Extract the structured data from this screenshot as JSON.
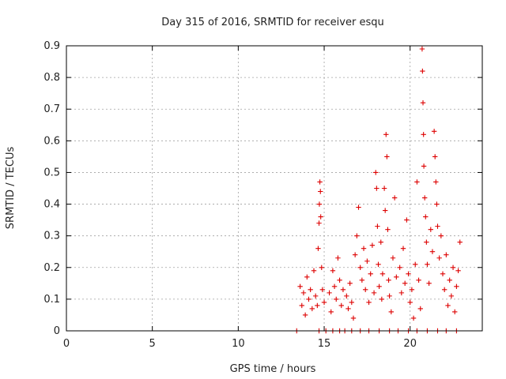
{
  "chart_data": {
    "type": "scatter",
    "title": "Day 315 of 2016, SRMTID for receiver esqu",
    "xlabel": "GPS time / hours",
    "ylabel": "SRMTID / TECUs",
    "xlim": [
      0,
      24.2
    ],
    "ylim": [
      0,
      0.9
    ],
    "xticks": [
      0,
      5,
      10,
      15,
      20
    ],
    "xtick_labels": [
      "0",
      "5",
      "10",
      "15",
      "20"
    ],
    "yticks": [
      0,
      0.1,
      0.2,
      0.3,
      0.4,
      0.5,
      0.6,
      0.7,
      0.8,
      0.9
    ],
    "ytick_labels": [
      "0",
      "0.1",
      "0.2",
      "0.3",
      "0.4",
      "0.5",
      "0.6",
      "0.7",
      "0.8",
      "0.9"
    ],
    "grid": true,
    "marker": "+",
    "series": [
      {
        "name": "SRMTID",
        "color": "#dd0000",
        "points": [
          [
            13.4,
            0.0
          ],
          [
            14.7,
            0.0
          ],
          [
            15.1,
            0.0
          ],
          [
            15.5,
            0.0
          ],
          [
            15.9,
            0.0
          ],
          [
            16.2,
            0.0
          ],
          [
            16.6,
            0.0
          ],
          [
            17.1,
            0.0
          ],
          [
            17.6,
            0.0
          ],
          [
            18.2,
            0.0
          ],
          [
            18.8,
            0.0
          ],
          [
            19.3,
            0.0
          ],
          [
            19.9,
            0.0
          ],
          [
            20.4,
            0.0
          ],
          [
            21.0,
            0.0
          ],
          [
            21.6,
            0.0
          ],
          [
            22.1,
            0.0
          ],
          [
            22.7,
            0.0
          ],
          [
            13.6,
            0.14
          ],
          [
            13.7,
            0.08
          ],
          [
            13.8,
            0.12
          ],
          [
            13.9,
            0.05
          ],
          [
            14.0,
            0.17
          ],
          [
            14.1,
            0.1
          ],
          [
            14.2,
            0.13
          ],
          [
            14.3,
            0.07
          ],
          [
            14.4,
            0.19
          ],
          [
            14.5,
            0.11
          ],
          [
            14.6,
            0.08
          ],
          [
            14.65,
            0.26
          ],
          [
            14.7,
            0.34
          ],
          [
            14.72,
            0.4
          ],
          [
            14.75,
            0.47
          ],
          [
            14.78,
            0.44
          ],
          [
            14.8,
            0.36
          ],
          [
            14.85,
            0.2
          ],
          [
            14.9,
            0.13
          ],
          [
            15.0,
            0.09
          ],
          [
            15.3,
            0.12
          ],
          [
            15.4,
            0.06
          ],
          [
            15.5,
            0.19
          ],
          [
            15.6,
            0.14
          ],
          [
            15.7,
            0.1
          ],
          [
            15.8,
            0.23
          ],
          [
            15.9,
            0.16
          ],
          [
            16.0,
            0.08
          ],
          [
            16.1,
            0.13
          ],
          [
            16.3,
            0.11
          ],
          [
            16.4,
            0.07
          ],
          [
            16.5,
            0.15
          ],
          [
            16.6,
            0.09
          ],
          [
            16.7,
            0.04
          ],
          [
            16.8,
            0.24
          ],
          [
            16.9,
            0.3
          ],
          [
            17.0,
            0.39
          ],
          [
            17.1,
            0.2
          ],
          [
            17.2,
            0.16
          ],
          [
            17.3,
            0.26
          ],
          [
            17.4,
            0.13
          ],
          [
            17.5,
            0.22
          ],
          [
            17.6,
            0.09
          ],
          [
            17.7,
            0.18
          ],
          [
            17.8,
            0.27
          ],
          [
            17.9,
            0.12
          ],
          [
            18.0,
            0.5
          ],
          [
            18.05,
            0.45
          ],
          [
            18.1,
            0.33
          ],
          [
            18.15,
            0.21
          ],
          [
            18.2,
            0.14
          ],
          [
            18.3,
            0.28
          ],
          [
            18.35,
            0.1
          ],
          [
            18.4,
            0.18
          ],
          [
            18.5,
            0.45
          ],
          [
            18.55,
            0.38
          ],
          [
            18.6,
            0.62
          ],
          [
            18.65,
            0.55
          ],
          [
            18.7,
            0.32
          ],
          [
            18.75,
            0.16
          ],
          [
            18.8,
            0.11
          ],
          [
            18.9,
            0.06
          ],
          [
            19.0,
            0.23
          ],
          [
            19.1,
            0.42
          ],
          [
            19.2,
            0.17
          ],
          [
            19.4,
            0.2
          ],
          [
            19.5,
            0.12
          ],
          [
            19.6,
            0.26
          ],
          [
            19.7,
            0.15
          ],
          [
            19.8,
            0.35
          ],
          [
            19.9,
            0.18
          ],
          [
            20.0,
            0.09
          ],
          [
            20.1,
            0.13
          ],
          [
            20.2,
            0.04
          ],
          [
            20.3,
            0.21
          ],
          [
            20.4,
            0.47
          ],
          [
            20.5,
            0.16
          ],
          [
            20.6,
            0.07
          ],
          [
            20.7,
            0.89
          ],
          [
            20.72,
            0.82
          ],
          [
            20.75,
            0.72
          ],
          [
            20.78,
            0.62
          ],
          [
            20.8,
            0.52
          ],
          [
            20.85,
            0.42
          ],
          [
            20.9,
            0.36
          ],
          [
            20.95,
            0.28
          ],
          [
            21.0,
            0.21
          ],
          [
            21.1,
            0.15
          ],
          [
            21.2,
            0.32
          ],
          [
            21.3,
            0.25
          ],
          [
            21.4,
            0.63
          ],
          [
            21.45,
            0.55
          ],
          [
            21.5,
            0.47
          ],
          [
            21.55,
            0.4
          ],
          [
            21.6,
            0.33
          ],
          [
            21.7,
            0.23
          ],
          [
            21.8,
            0.3
          ],
          [
            21.9,
            0.18
          ],
          [
            22.0,
            0.13
          ],
          [
            22.1,
            0.24
          ],
          [
            22.2,
            0.08
          ],
          [
            22.3,
            0.16
          ],
          [
            22.4,
            0.11
          ],
          [
            22.5,
            0.2
          ],
          [
            22.6,
            0.06
          ],
          [
            22.7,
            0.14
          ],
          [
            22.8,
            0.19
          ],
          [
            22.9,
            0.28
          ]
        ]
      }
    ]
  }
}
